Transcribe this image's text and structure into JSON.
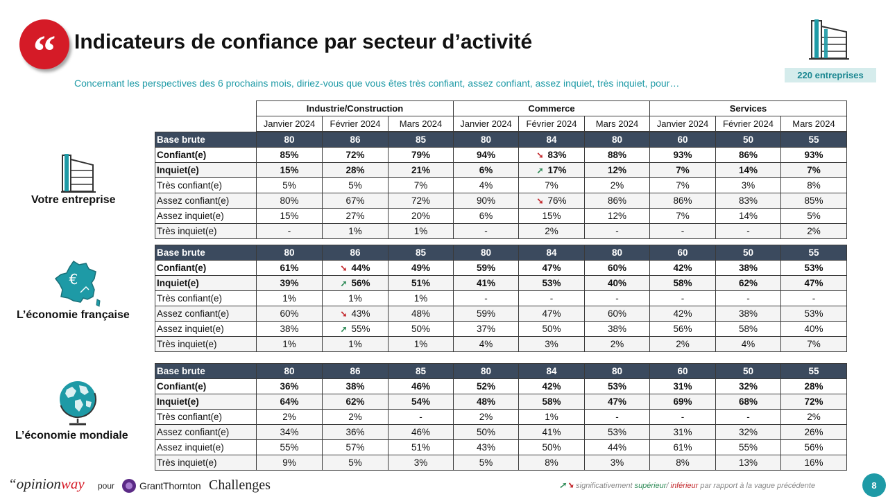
{
  "header": {
    "quote_glyph": "“",
    "title": "Indicateurs de confiance par secteur d’activité",
    "subtitle": "Concernant les perspectives des 6 prochains mois, diriez-vous que vous êtes très confiant, assez confiant, assez inquiet, très inquiet, pour…",
    "count_badge": "220 entreprises"
  },
  "columns": {
    "groups": [
      "Industrie/Construction",
      "Commerce",
      "Services"
    ],
    "months": [
      "Janvier 2024",
      "Février 2024",
      "Mars 2024",
      "Janvier 2024",
      "Février 2024",
      "Mars 2024",
      "Janvier 2024",
      "Février 2024",
      "Mars 2024"
    ]
  },
  "sections": [
    {
      "label": "Votre entreprise",
      "icon": "building-icon",
      "rows": [
        {
          "label": "Base brute",
          "type": "base",
          "values": [
            "80",
            "86",
            "85",
            "80",
            "84",
            "80",
            "60",
            "50",
            "55"
          ]
        },
        {
          "label": "Confiant(e)",
          "type": "bold",
          "values": [
            "85%",
            "72%",
            "79%",
            "94%",
            "83%",
            "88%",
            "93%",
            "86%",
            "93%"
          ],
          "arrows": {
            "4": "down"
          }
        },
        {
          "label": "Inquiet(e)",
          "type": "bold alt",
          "values": [
            "15%",
            "28%",
            "21%",
            "6%",
            "17%",
            "12%",
            "7%",
            "14%",
            "7%"
          ],
          "arrows": {
            "4": "up"
          }
        },
        {
          "label": "Très confiant(e)",
          "type": "",
          "values": [
            "5%",
            "5%",
            "7%",
            "4%",
            "7%",
            "2%",
            "7%",
            "3%",
            "8%"
          ]
        },
        {
          "label": "Assez confiant(e)",
          "type": "alt",
          "values": [
            "80%",
            "67%",
            "72%",
            "90%",
            "76%",
            "86%",
            "86%",
            "83%",
            "85%"
          ],
          "arrows": {
            "4": "down"
          }
        },
        {
          "label": "Assez inquiet(e)",
          "type": "",
          "values": [
            "15%",
            "27%",
            "20%",
            "6%",
            "15%",
            "12%",
            "7%",
            "14%",
            "5%"
          ]
        },
        {
          "label": "Très inquiet(e)",
          "type": "alt",
          "values": [
            "-",
            "1%",
            "1%",
            "-",
            "2%",
            "-",
            "-",
            "-",
            "2%"
          ]
        }
      ]
    },
    {
      "label": "L’économie française",
      "icon": "france-map-euro-icon",
      "rows": [
        {
          "label": "Base brute",
          "type": "base",
          "values": [
            "80",
            "86",
            "85",
            "80",
            "84",
            "80",
            "60",
            "50",
            "55"
          ]
        },
        {
          "label": "Confiant(e)",
          "type": "bold",
          "values": [
            "61%",
            "44%",
            "49%",
            "59%",
            "47%",
            "60%",
            "42%",
            "38%",
            "53%"
          ],
          "arrows": {
            "1": "down"
          }
        },
        {
          "label": "Inquiet(e)",
          "type": "bold alt",
          "values": [
            "39%",
            "56%",
            "51%",
            "41%",
            "53%",
            "40%",
            "58%",
            "62%",
            "47%"
          ],
          "arrows": {
            "1": "up"
          }
        },
        {
          "label": "Très confiant(e)",
          "type": "",
          "values": [
            "1%",
            "1%",
            "1%",
            "-",
            "-",
            "-",
            "-",
            "-",
            "-"
          ]
        },
        {
          "label": "Assez confiant(e)",
          "type": "alt",
          "values": [
            "60%",
            "43%",
            "48%",
            "59%",
            "47%",
            "60%",
            "42%",
            "38%",
            "53%"
          ],
          "arrows": {
            "1": "down"
          }
        },
        {
          "label": "Assez inquiet(e)",
          "type": "",
          "values": [
            "38%",
            "55%",
            "50%",
            "37%",
            "50%",
            "38%",
            "56%",
            "58%",
            "40%"
          ],
          "arrows": {
            "1": "up"
          }
        },
        {
          "label": "Très inquiet(e)",
          "type": "alt",
          "values": [
            "1%",
            "1%",
            "1%",
            "4%",
            "3%",
            "2%",
            "2%",
            "4%",
            "7%"
          ]
        }
      ]
    },
    {
      "label": "L’économie mondiale",
      "icon": "globe-icon",
      "rows": [
        {
          "label": "Base brute",
          "type": "base",
          "values": [
            "80",
            "86",
            "85",
            "80",
            "84",
            "80",
            "60",
            "50",
            "55"
          ]
        },
        {
          "label": "Confiant(e)",
          "type": "bold",
          "values": [
            "36%",
            "38%",
            "46%",
            "52%",
            "42%",
            "53%",
            "31%",
            "32%",
            "28%"
          ]
        },
        {
          "label": "Inquiet(e)",
          "type": "bold alt",
          "values": [
            "64%",
            "62%",
            "54%",
            "48%",
            "58%",
            "47%",
            "69%",
            "68%",
            "72%"
          ]
        },
        {
          "label": "Très confiant(e)",
          "type": "",
          "values": [
            "2%",
            "2%",
            "-",
            "2%",
            "1%",
            "-",
            "-",
            "-",
            "2%"
          ]
        },
        {
          "label": "Assez confiant(e)",
          "type": "alt",
          "values": [
            "34%",
            "36%",
            "46%",
            "50%",
            "41%",
            "53%",
            "31%",
            "32%",
            "26%"
          ]
        },
        {
          "label": "Assez inquiet(e)",
          "type": "",
          "values": [
            "55%",
            "57%",
            "51%",
            "43%",
            "50%",
            "44%",
            "61%",
            "55%",
            "56%"
          ]
        },
        {
          "label": "Très inquiet(e)",
          "type": "alt",
          "values": [
            "9%",
            "5%",
            "3%",
            "5%",
            "8%",
            "3%",
            "8%",
            "13%",
            "16%"
          ]
        }
      ]
    }
  ],
  "footer": {
    "opinion_open_quote": "“",
    "opinion_part1": "opinion",
    "opinion_part2": "way",
    "pour": "pour",
    "grant_thornton": "GrantThornton",
    "challenges": "Challenges",
    "legend_arrows": "➘",
    "legend_text1": " significativement ",
    "legend_sup": "supérieur",
    "legend_sep": "/ ",
    "legend_inf": "inférieur",
    "legend_text2": " par rapport à la vague précédente",
    "page_number": "8"
  },
  "colors": {
    "red": "#d51b27",
    "teal": "#1e9aa6",
    "base_row": "#3b4a5e",
    "arrow_up": "#2e8b57",
    "arrow_down": "#c3272b"
  }
}
